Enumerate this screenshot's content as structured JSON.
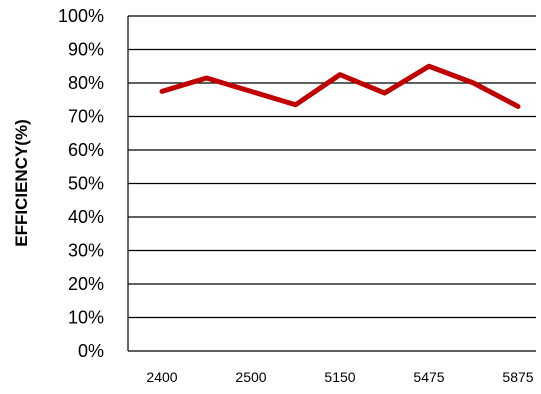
{
  "chart_data": {
    "type": "line",
    "title": "",
    "xlabel": "",
    "ylabel": "EFFICIENCY(%)",
    "categories": [
      "2400",
      "",
      "2500",
      "",
      "5150",
      "",
      "5475",
      "",
      "5875"
    ],
    "series": [
      {
        "values": [
          77.5,
          81.5,
          77.5,
          73.5,
          82.5,
          77.0,
          85.0,
          80.0,
          73.0
        ],
        "color": "#c00000"
      }
    ],
    "ylim": [
      0,
      100
    ],
    "yticks": [
      "0%",
      "10%",
      "20%",
      "30%",
      "40%",
      "50%",
      "60%",
      "70%",
      "80%",
      "90%",
      "100%"
    ],
    "grid": true,
    "legend": "none"
  }
}
